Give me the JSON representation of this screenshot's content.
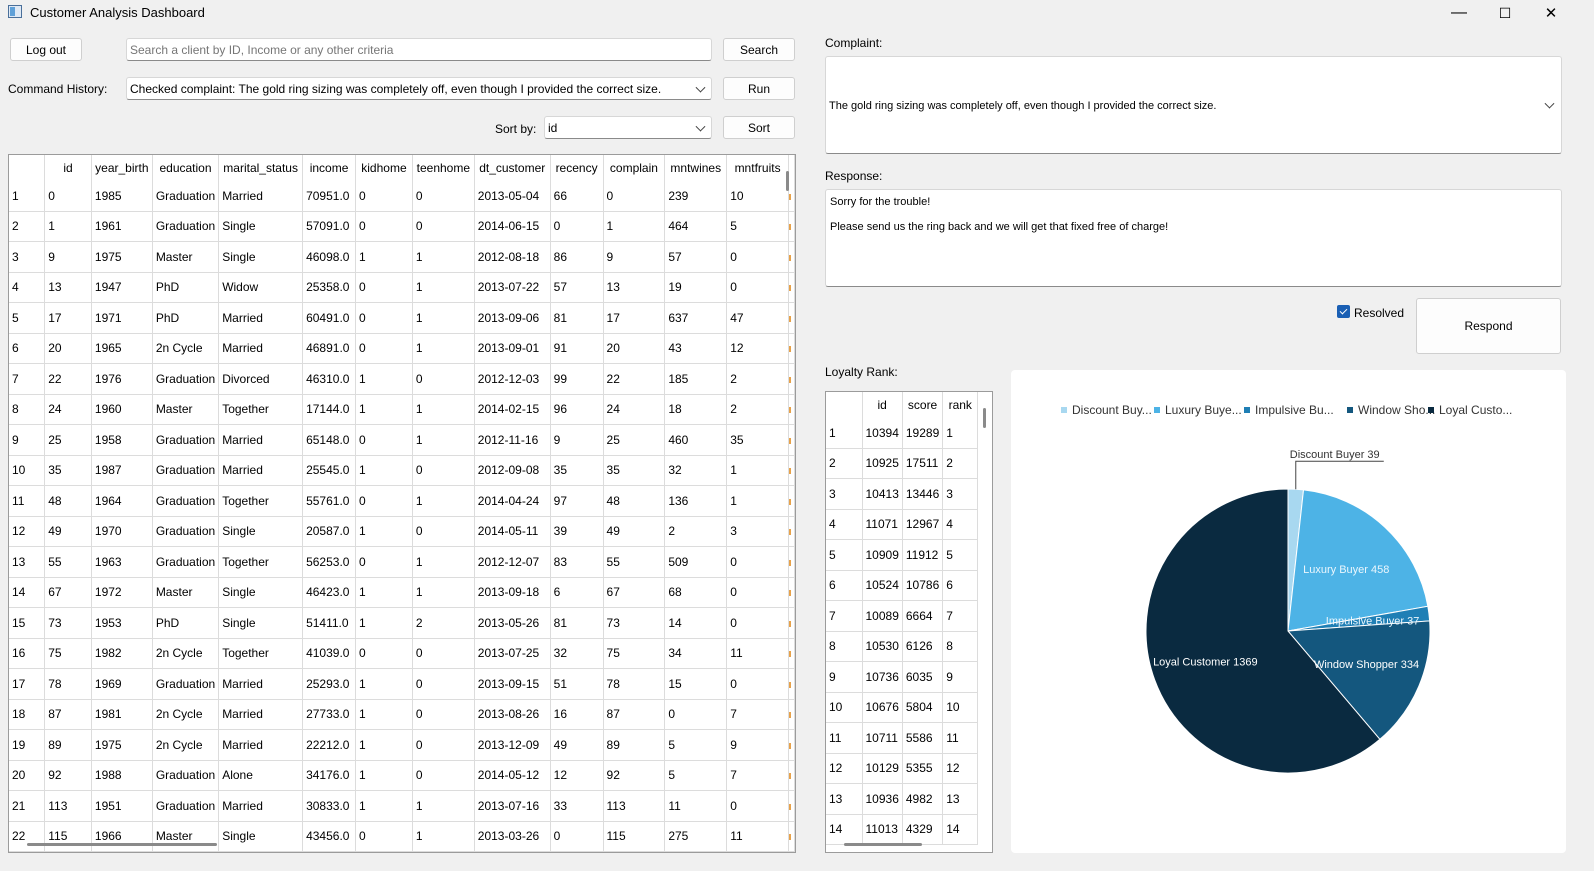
{
  "window": {
    "title": "Customer Analysis Dashboard",
    "controls": {
      "minimize": "—",
      "maximize": "☐",
      "close": "✕"
    }
  },
  "toolbar": {
    "logout_label": "Log out",
    "search_placeholder": "Search a client by ID, Income or any other criteria",
    "search_label": "Search",
    "history_label": "Command History:",
    "history_value": "Checked complaint: The gold ring sizing was completely off, even though I provided the correct size.",
    "run_label": "Run",
    "sortby_label": "Sort by:",
    "sortby_value": "id",
    "sort_label": "Sort"
  },
  "customers": {
    "columns": [
      "id",
      "year_birth",
      "education",
      "marital_status",
      "income",
      "kidhome",
      "teenhome",
      "dt_customer",
      "recency",
      "complain",
      "mntwines",
      "mntfruits"
    ],
    "rows": [
      [
        "1",
        "0",
        "1985",
        "Graduation",
        "Married",
        "70951.0",
        "0",
        "0",
        "2013-05-04",
        "66",
        "0",
        "239",
        "10"
      ],
      [
        "2",
        "1",
        "1961",
        "Graduation",
        "Single",
        "57091.0",
        "0",
        "0",
        "2014-06-15",
        "0",
        "1",
        "464",
        "5"
      ],
      [
        "3",
        "9",
        "1975",
        "Master",
        "Single",
        "46098.0",
        "1",
        "1",
        "2012-08-18",
        "86",
        "9",
        "57",
        "0"
      ],
      [
        "4",
        "13",
        "1947",
        "PhD",
        "Widow",
        "25358.0",
        "0",
        "1",
        "2013-07-22",
        "57",
        "13",
        "19",
        "0"
      ],
      [
        "5",
        "17",
        "1971",
        "PhD",
        "Married",
        "60491.0",
        "0",
        "1",
        "2013-09-06",
        "81",
        "17",
        "637",
        "47"
      ],
      [
        "6",
        "20",
        "1965",
        "2n Cycle",
        "Married",
        "46891.0",
        "0",
        "1",
        "2013-09-01",
        "91",
        "20",
        "43",
        "12"
      ],
      [
        "7",
        "22",
        "1976",
        "Graduation",
        "Divorced",
        "46310.0",
        "1",
        "0",
        "2012-12-03",
        "99",
        "22",
        "185",
        "2"
      ],
      [
        "8",
        "24",
        "1960",
        "Master",
        "Together",
        "17144.0",
        "1",
        "1",
        "2014-02-15",
        "96",
        "24",
        "18",
        "2"
      ],
      [
        "9",
        "25",
        "1958",
        "Graduation",
        "Married",
        "65148.0",
        "0",
        "1",
        "2012-11-16",
        "9",
        "25",
        "460",
        "35"
      ],
      [
        "10",
        "35",
        "1987",
        "Graduation",
        "Married",
        "25545.0",
        "1",
        "0",
        "2012-09-08",
        "35",
        "35",
        "32",
        "1"
      ],
      [
        "11",
        "48",
        "1964",
        "Graduation",
        "Together",
        "55761.0",
        "0",
        "1",
        "2014-04-24",
        "97",
        "48",
        "136",
        "1"
      ],
      [
        "12",
        "49",
        "1970",
        "Graduation",
        "Single",
        "20587.0",
        "1",
        "0",
        "2014-05-11",
        "39",
        "49",
        "2",
        "3"
      ],
      [
        "13",
        "55",
        "1963",
        "Graduation",
        "Together",
        "56253.0",
        "0",
        "1",
        "2012-12-07",
        "83",
        "55",
        "509",
        "0"
      ],
      [
        "14",
        "67",
        "1972",
        "Master",
        "Single",
        "46423.0",
        "1",
        "1",
        "2013-09-18",
        "6",
        "67",
        "68",
        "0"
      ],
      [
        "15",
        "73",
        "1953",
        "PhD",
        "Single",
        "51411.0",
        "1",
        "2",
        "2013-05-26",
        "81",
        "73",
        "14",
        "0"
      ],
      [
        "16",
        "75",
        "1982",
        "2n Cycle",
        "Together",
        "41039.0",
        "0",
        "0",
        "2013-07-25",
        "32",
        "75",
        "34",
        "11"
      ],
      [
        "17",
        "78",
        "1969",
        "Graduation",
        "Married",
        "25293.0",
        "1",
        "0",
        "2013-09-15",
        "51",
        "78",
        "15",
        "0"
      ],
      [
        "18",
        "87",
        "1981",
        "2n Cycle",
        "Married",
        "27733.0",
        "1",
        "0",
        "2013-08-26",
        "16",
        "87",
        "0",
        "7"
      ],
      [
        "19",
        "89",
        "1975",
        "2n Cycle",
        "Married",
        "22212.0",
        "1",
        "0",
        "2013-12-09",
        "49",
        "89",
        "5",
        "9"
      ],
      [
        "20",
        "92",
        "1988",
        "Graduation",
        "Alone",
        "34176.0",
        "1",
        "0",
        "2014-05-12",
        "12",
        "92",
        "5",
        "7"
      ],
      [
        "21",
        "113",
        "1951",
        "Graduation",
        "Married",
        "30833.0",
        "1",
        "1",
        "2013-07-16",
        "33",
        "113",
        "11",
        "0"
      ],
      [
        "22",
        "115",
        "1966",
        "Master",
        "Single",
        "43456.0",
        "0",
        "1",
        "2013-03-26",
        "0",
        "115",
        "275",
        "11"
      ]
    ]
  },
  "complaint": {
    "label": "Complaint:",
    "text": "The gold ring sizing was completely off, even though I provided the correct size."
  },
  "response": {
    "label": "Response:",
    "line1": "Sorry for the trouble!",
    "line2": "Please send us the ring back and we will get that fixed free of charge!"
  },
  "actions": {
    "resolved_label": "Resolved",
    "resolved_checked": true,
    "respond_label": "Respond"
  },
  "loyalty": {
    "label": "Loyalty Rank:",
    "columns": [
      "id",
      "score",
      "rank"
    ],
    "rows": [
      [
        "1",
        "10394",
        "19289",
        "1"
      ],
      [
        "2",
        "10925",
        "17511",
        "2"
      ],
      [
        "3",
        "10413",
        "13446",
        "3"
      ],
      [
        "4",
        "11071",
        "12967",
        "4"
      ],
      [
        "5",
        "10909",
        "11912",
        "5"
      ],
      [
        "6",
        "10524",
        "10786",
        "6"
      ],
      [
        "7",
        "10089",
        "6664",
        "7"
      ],
      [
        "8",
        "10530",
        "6126",
        "8"
      ],
      [
        "9",
        "10736",
        "6035",
        "9"
      ],
      [
        "10",
        "10676",
        "5804",
        "10"
      ],
      [
        "11",
        "10711",
        "5586",
        "11"
      ],
      [
        "12",
        "10129",
        "5355",
        "12"
      ],
      [
        "13",
        "10936",
        "4982",
        "13"
      ],
      [
        "14",
        "11013",
        "4329",
        "14"
      ]
    ]
  },
  "chart_data": {
    "type": "pie",
    "title": "",
    "legend_position": "top",
    "legend_labels": [
      "Discount Buy...",
      "Luxury Buye...",
      "Impulsive Bu...",
      "Window Sho...",
      "Loyal Custo..."
    ],
    "slices": [
      {
        "name": "Discount Buyer",
        "value": 39,
        "color": "#a8d8f0",
        "label": "Discount Buyer 39"
      },
      {
        "name": "Luxury Buyer",
        "value": 458,
        "color": "#4db3e6",
        "label": "Luxury Buyer 458"
      },
      {
        "name": "Impulsive Buyer",
        "value": 37,
        "color": "#1f7fb5",
        "label": "Impulsive Buyer 37"
      },
      {
        "name": "Window Shopper",
        "value": 334,
        "color": "#14577e",
        "label": "Window Shopper 334"
      },
      {
        "name": "Loyal Customer",
        "value": 1369,
        "color": "#0a2a40",
        "label": "Loyal Customer 1369"
      }
    ]
  }
}
